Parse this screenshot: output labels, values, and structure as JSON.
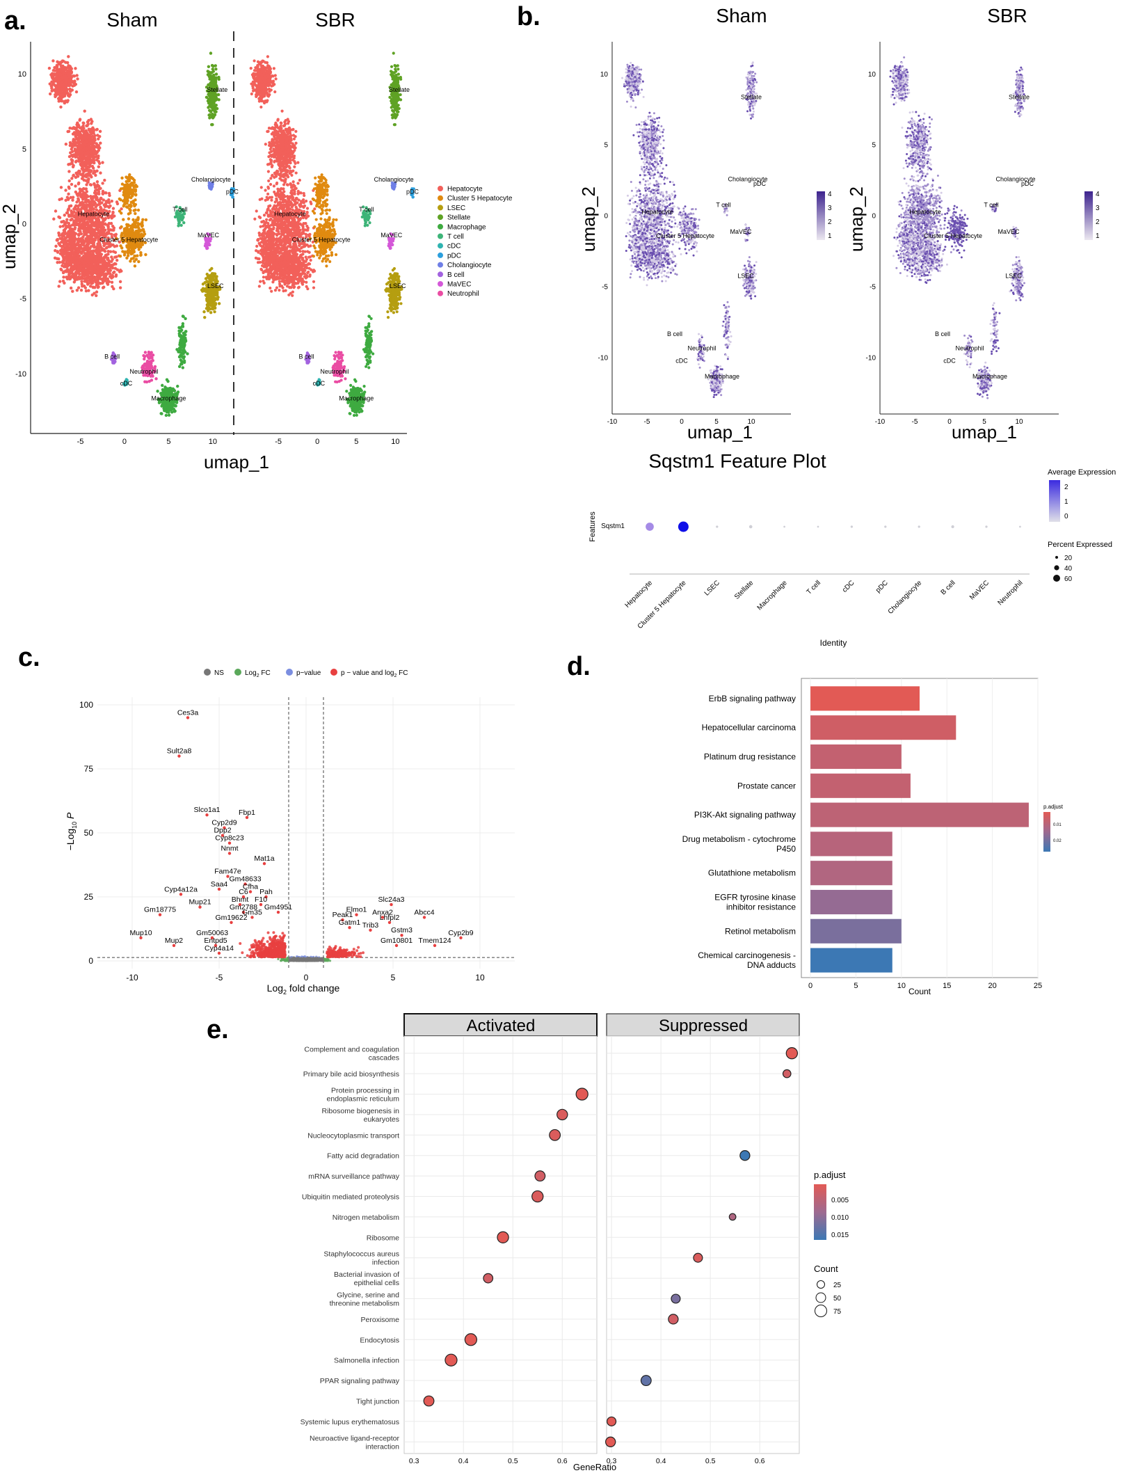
{
  "figure": {
    "panel_labels": [
      "a.",
      "b.",
      "c.",
      "d.",
      "e."
    ]
  },
  "colors": {
    "hepatocyte": "#F2605A",
    "cluster5": "#E08A10",
    "lsec": "#B59E10",
    "stellate": "#5FA224",
    "macrophage": "#3EAA40",
    "tcell": "#3DB478",
    "cdc": "#2FB3B0",
    "pdc": "#2B9FDD",
    "cholangiocyte": "#6F7FE6",
    "bcell": "#A262DF",
    "mavec": "#D458D8",
    "neutrophil": "#EA4CA3",
    "feature_low": "#E6E1EA",
    "feature_high": "#4B2F9C",
    "red": "#E25A55",
    "blue": "#3C78B4"
  },
  "chart_data": [
    {
      "id": "a",
      "type": "scatter",
      "subtype": "umap",
      "panels": [
        "Sham",
        "SBR"
      ],
      "xlabel": "umap_1",
      "ylabel": "umap_2",
      "x_ticks": [
        "-5",
        "0",
        "5",
        "10"
      ],
      "y_ticks": [
        "10",
        "5",
        "0",
        "-5",
        "-10"
      ],
      "xlim": [
        -10,
        13
      ],
      "ylim": [
        -14,
        12
      ],
      "cluster_labels": [
        {
          "text": "Stellate",
          "x": 10.5,
          "y": 8.8
        },
        {
          "text": "Cholangiocyte",
          "x": 9.8,
          "y": 2.8
        },
        {
          "text": "pDC",
          "x": 12.2,
          "y": 2.0
        },
        {
          "text": "Hepatocyte",
          "x": -3.5,
          "y": 0.5
        },
        {
          "text": "T cell",
          "x": 6.3,
          "y": 0.8
        },
        {
          "text": "Cluster 5 Hepatocyte",
          "x": 0.5,
          "y": -1.2
        },
        {
          "text": "MaVEC",
          "x": 9.5,
          "y": -0.9
        },
        {
          "text": "LSEC",
          "x": 10.3,
          "y": -4.3
        },
        {
          "text": "B cell",
          "x": -1.4,
          "y": -9.0
        },
        {
          "text": "Neutrophil",
          "x": 2.2,
          "y": -10.0
        },
        {
          "text": "cDC",
          "x": 0.2,
          "y": -10.8
        },
        {
          "text": "Macrophage",
          "x": 5.0,
          "y": -11.8
        }
      ],
      "legend": [
        "Hepatocyte",
        "Cluster 5 Hepatocyte",
        "LSEC",
        "Stellate",
        "Macrophage",
        "T cell",
        "cDC",
        "pDC",
        "Cholangiocyte",
        "B cell",
        "MaVEC",
        "Neutrophil"
      ]
    },
    {
      "id": "b",
      "type": "scatter",
      "subtype": "feature-umap",
      "panels": [
        "Sham",
        "SBR"
      ],
      "xlabel": "umap_1",
      "ylabel": "umap_2",
      "x_ticks": [
        "-10",
        "-5",
        "0",
        "5",
        "10"
      ],
      "y_ticks": [
        "10",
        "5",
        "0",
        "-5",
        "-10"
      ],
      "colorbar_ticks": [
        "4",
        "3",
        "2",
        "1"
      ],
      "cluster_labels": [
        {
          "text": "Stellate",
          "x": 10.0,
          "y": 8.2
        },
        {
          "text": "Cholangiocyte",
          "x": 9.5,
          "y": 2.4
        },
        {
          "text": "pDC",
          "x": 11.2,
          "y": 2.1
        },
        {
          "text": "T cell",
          "x": 6.0,
          "y": 0.6
        },
        {
          "text": "Hepatocyte",
          "x": -3.5,
          "y": 0.1
        },
        {
          "text": "Cluster 5 Hepatocyte",
          "x": 0.5,
          "y": -1.6
        },
        {
          "text": "MaVEC",
          "x": 8.5,
          "y": -1.3
        },
        {
          "text": "LSEC",
          "x": 9.2,
          "y": -4.4
        },
        {
          "text": "B cell",
          "x": -1.0,
          "y": -8.5
        },
        {
          "text": "Neutrophil",
          "x": 2.9,
          "y": -9.5
        },
        {
          "text": "cDC",
          "x": 0.0,
          "y": -10.4
        },
        {
          "text": "Macrophage",
          "x": 5.8,
          "y": -11.5
        }
      ]
    },
    {
      "id": "b-dot",
      "type": "scatter",
      "subtype": "dotplot",
      "title": "Sqstm1 Feature Plot",
      "ylabel": "Features",
      "xlabel": "Identity",
      "feature": "Sqstm1",
      "categories": [
        "Hepatocyte",
        "Cluster 5 Hepatocyte",
        "LSEC",
        "Stellate",
        "Macrophage",
        "T cell",
        "cDC",
        "pDC",
        "Cholangiocyte",
        "B cell",
        "MaVEC",
        "Neutrophil"
      ],
      "avg_expression": [
        0.9,
        2.5,
        -0.4,
        -0.3,
        -0.5,
        -0.5,
        -0.4,
        -0.4,
        -0.4,
        -0.3,
        -0.4,
        -0.5
      ],
      "pct_expressed": [
        38,
        62,
        3,
        6,
        2,
        2,
        3,
        3,
        3,
        5,
        3,
        2
      ],
      "legend_avg_title": "Average Expression",
      "legend_avg_ticks": [
        "2",
        "1",
        "0"
      ],
      "legend_pct_title": "Percent Expressed",
      "legend_pct_values": [
        "20",
        "40",
        "60"
      ]
    },
    {
      "id": "c",
      "type": "scatter",
      "subtype": "volcano",
      "xlabel_main": "Log",
      "xlabel_sub": "2",
      "xlabel_tail": " fold change",
      "ylabel_main": "−Log",
      "ylabel_sub": "10",
      "ylabel_tail": " P",
      "xlim": [
        -12,
        12
      ],
      "ylim": [
        -3,
        103
      ],
      "x_ticks": [
        -10,
        -5,
        0,
        5,
        10
      ],
      "y_ticks": [
        0,
        25,
        50,
        75,
        100
      ],
      "fc_cutoff": 1,
      "p_cutoff": 1.3,
      "legend": [
        "NS",
        "Log",
        "p−value",
        "p − value and log"
      ],
      "legend_sub": "2",
      "legend_tail": " FC",
      "labeled_points": [
        {
          "gene": "Ces3a",
          "x": -6.8,
          "y": 95
        },
        {
          "gene": "Sult2a8",
          "x": -7.3,
          "y": 80
        },
        {
          "gene": "Slco1a1",
          "x": -5.7,
          "y": 57
        },
        {
          "gene": "Fbp1",
          "x": -3.4,
          "y": 56
        },
        {
          "gene": "Cyp2d9",
          "x": -4.7,
          "y": 52
        },
        {
          "gene": "Dpp2",
          "x": -4.8,
          "y": 49
        },
        {
          "gene": "Cyp8c23",
          "x": -4.4,
          "y": 46
        },
        {
          "gene": "Nnmt",
          "x": -4.4,
          "y": 42
        },
        {
          "gene": "Mat1a",
          "x": -2.4,
          "y": 38
        },
        {
          "gene": "Fam47e",
          "x": -4.5,
          "y": 33
        },
        {
          "gene": "Gm48633",
          "x": -3.5,
          "y": 30
        },
        {
          "gene": "Saa4",
          "x": -5.0,
          "y": 28
        },
        {
          "gene": "Cfha",
          "x": -3.2,
          "y": 27
        },
        {
          "gene": "Cyp4a12a",
          "x": -7.2,
          "y": 26
        },
        {
          "gene": "C6",
          "x": -3.6,
          "y": 25
        },
        {
          "gene": "Pah",
          "x": -2.3,
          "y": 25
        },
        {
          "gene": "Bhmt",
          "x": -3.8,
          "y": 22
        },
        {
          "gene": "F10",
          "x": -2.6,
          "y": 22
        },
        {
          "gene": "Mup21",
          "x": -6.1,
          "y": 21
        },
        {
          "gene": "Gm2788",
          "x": -3.6,
          "y": 19
        },
        {
          "gene": "Gm4951",
          "x": -1.6,
          "y": 19
        },
        {
          "gene": "Gm18775",
          "x": -8.4,
          "y": 18
        },
        {
          "gene": "Gm35",
          "x": -3.1,
          "y": 17
        },
        {
          "gene": "Gm19622",
          "x": -4.3,
          "y": 15
        },
        {
          "gene": "Abcc4",
          "x": 6.8,
          "y": 17
        },
        {
          "gene": "Slc24a3",
          "x": 4.9,
          "y": 22
        },
        {
          "gene": "Elmo1",
          "x": 2.9,
          "y": 18
        },
        {
          "gene": "Anxa2",
          "x": 4.4,
          "y": 17
        },
        {
          "gene": "Peak1",
          "x": 2.1,
          "y": 16
        },
        {
          "gene": "Lhfpl2",
          "x": 4.8,
          "y": 15
        },
        {
          "gene": "Gatm1",
          "x": 2.5,
          "y": 13
        },
        {
          "gene": "Trib3",
          "x": 3.7,
          "y": 12
        },
        {
          "gene": "Cyp2b9",
          "x": 8.9,
          "y": 9
        },
        {
          "gene": "Mup10",
          "x": -9.5,
          "y": 9
        },
        {
          "gene": "Gm50063",
          "x": -5.4,
          "y": 9
        },
        {
          "gene": "Gstm3",
          "x": 5.5,
          "y": 10
        },
        {
          "gene": "Tmem124",
          "x": 7.4,
          "y": 6
        },
        {
          "gene": "Gm10801",
          "x": 5.2,
          "y": 6
        },
        {
          "gene": "Mup2",
          "x": -7.6,
          "y": 6
        },
        {
          "gene": "Entpd5",
          "x": -5.2,
          "y": 6
        },
        {
          "gene": "Cyp4a14",
          "x": -5.0,
          "y": 3
        }
      ]
    },
    {
      "id": "d",
      "type": "bar",
      "orientation": "horizontal",
      "categories": [
        "ErbB signaling pathway",
        "Hepatocellular carcinoma",
        "Platinum drug resistance",
        "Prostate cancer",
        "PI3K-Akt signaling pathway",
        "Drug metabolism - cytochrome P450",
        "Glutathione metabolism",
        "EGFR tyrosine kinase inhibitor resistance",
        "Retinol metabolism",
        "Chemical carcinogenesis - DNA adducts"
      ],
      "category_lines": [
        [
          "ErbB signaling pathway"
        ],
        [
          "Hepatocellular carcinoma"
        ],
        [
          "Platinum drug resistance"
        ],
        [
          "Prostate cancer"
        ],
        [
          "PI3K-Akt signaling pathway"
        ],
        [
          "Drug metabolism - cytochrome",
          "P450"
        ],
        [
          "Glutathione metabolism"
        ],
        [
          "EGFR tyrosine kinase",
          "inhibitor resistance"
        ],
        [
          "Retinol metabolism"
        ],
        [
          "Chemical carcinogenesis -",
          "DNA adducts"
        ]
      ],
      "values": [
        12,
        16,
        10,
        11,
        24,
        9,
        9,
        9,
        10,
        9
      ],
      "p_adjust": [
        0.004,
        0.007,
        0.009,
        0.009,
        0.01,
        0.011,
        0.012,
        0.016,
        0.019,
        0.026
      ],
      "xlabel": "Count",
      "xlim": [
        -1,
        25
      ],
      "x_ticks": [
        0,
        5,
        10,
        15,
        20,
        25
      ],
      "legend_title": "p.adjust",
      "legend_ticks": [
        "0.01",
        "0.02"
      ]
    },
    {
      "id": "e",
      "type": "scatter",
      "subtype": "enrichment-dotplot",
      "facets": [
        "Activated",
        "Suppressed"
      ],
      "categories": [
        [
          "Complement and coagulation",
          "cascades"
        ],
        [
          "Primary bile acid biosynthesis"
        ],
        [
          "Protein processing in",
          "endoplasmic reticulum"
        ],
        [
          "Ribosome biogenesis in",
          "eukaryotes"
        ],
        [
          "Nucleocytoplasmic transport"
        ],
        [
          "Fatty acid degradation"
        ],
        [
          "mRNA surveillance pathway"
        ],
        [
          "Ubiquitin mediated proteolysis"
        ],
        [
          "Nitrogen metabolism"
        ],
        [
          "Ribosome"
        ],
        [
          "Staphylococcus aureus",
          "infection"
        ],
        [
          "Bacterial invasion of",
          "epithelial cells"
        ],
        [
          "Glycine, serine and",
          "threonine metabolism"
        ],
        [
          "Peroxisome"
        ],
        [
          "Endocytosis"
        ],
        [
          "Salmonella infection"
        ],
        [
          "PPAR signaling pathway"
        ],
        [
          "Tight junction"
        ],
        [
          "Systemic lupus erythematosus"
        ],
        [
          "Neuroactive ligand-receptor",
          "interaction"
        ]
      ],
      "points": [
        {
          "facet": 0,
          "row": 2,
          "x": 0.64,
          "count": 70,
          "padj": 0.002
        },
        {
          "facet": 0,
          "row": 3,
          "x": 0.6,
          "count": 50,
          "padj": 0.003
        },
        {
          "facet": 0,
          "row": 4,
          "x": 0.585,
          "count": 55,
          "padj": 0.003
        },
        {
          "facet": 0,
          "row": 6,
          "x": 0.555,
          "count": 45,
          "padj": 0.004
        },
        {
          "facet": 0,
          "row": 7,
          "x": 0.55,
          "count": 60,
          "padj": 0.003
        },
        {
          "facet": 0,
          "row": 9,
          "x": 0.48,
          "count": 60,
          "padj": 0.002
        },
        {
          "facet": 0,
          "row": 11,
          "x": 0.45,
          "count": 35,
          "padj": 0.004
        },
        {
          "facet": 0,
          "row": 14,
          "x": 0.415,
          "count": 70,
          "padj": 0.002
        },
        {
          "facet": 0,
          "row": 15,
          "x": 0.375,
          "count": 70,
          "padj": 0.002
        },
        {
          "facet": 0,
          "row": 17,
          "x": 0.33,
          "count": 45,
          "padj": 0.002
        },
        {
          "facet": 1,
          "row": 0,
          "x": 0.665,
          "count": 60,
          "padj": 0.002
        },
        {
          "facet": 1,
          "row": 1,
          "x": 0.655,
          "count": 20,
          "padj": 0.004
        },
        {
          "facet": 1,
          "row": 5,
          "x": 0.57,
          "count": 40,
          "padj": 0.018
        },
        {
          "facet": 1,
          "row": 8,
          "x": 0.545,
          "count": 10,
          "padj": 0.008
        },
        {
          "facet": 1,
          "row": 10,
          "x": 0.475,
          "count": 30,
          "padj": 0.003
        },
        {
          "facet": 1,
          "row": 12,
          "x": 0.43,
          "count": 30,
          "padj": 0.013
        },
        {
          "facet": 1,
          "row": 13,
          "x": 0.425,
          "count": 40,
          "padj": 0.004
        },
        {
          "facet": 1,
          "row": 16,
          "x": 0.37,
          "count": 45,
          "padj": 0.015
        },
        {
          "facet": 1,
          "row": 18,
          "x": 0.3,
          "count": 30,
          "padj": 0.002
        },
        {
          "facet": 1,
          "row": 19,
          "x": 0.298,
          "count": 40,
          "padj": 0.002
        }
      ],
      "xlabel": "GeneRatio",
      "x_ticks_activated": [
        "0.3",
        "0.4",
        "0.5",
        "0.6"
      ],
      "x_ticks_suppressed": [
        "0.3",
        "0.4",
        "0.5",
        "0.6"
      ],
      "xlim_activated": [
        0.28,
        0.67
      ],
      "xlim_suppressed": [
        0.29,
        0.68
      ],
      "legend_padj_title": "p.adjust",
      "legend_padj_ticks": [
        "0.005",
        "0.010",
        "0.015"
      ],
      "legend_count_title": "Count",
      "legend_count_values": [
        "25",
        "50",
        "75"
      ]
    }
  ]
}
